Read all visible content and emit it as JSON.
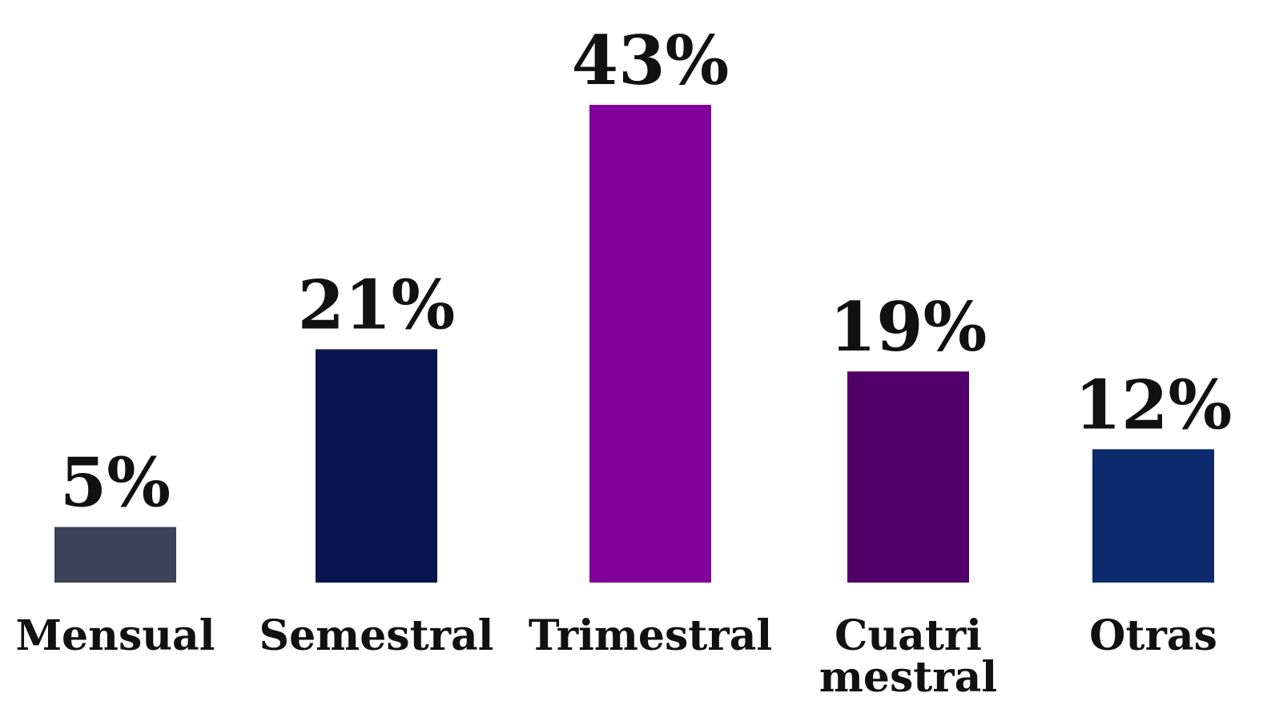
{
  "chart_data": {
    "type": "bar",
    "title": "",
    "xlabel": "",
    "ylabel": "",
    "unit": "%",
    "ylim": [
      0,
      43
    ],
    "grid": false,
    "legend": "none",
    "categories": [
      "Mensual",
      "Semestral",
      "Trimestral",
      "Cuatri mestral",
      "Otras"
    ],
    "category_lines": [
      [
        "Mensual"
      ],
      [
        "Semestral"
      ],
      [
        "Trimestral"
      ],
      [
        "Cuatri",
        "mestral"
      ],
      [
        "Otras"
      ]
    ],
    "values": [
      5,
      21,
      43,
      19,
      12
    ],
    "value_labels": [
      "5%",
      "21%",
      "43%",
      "19%",
      "12%"
    ],
    "colors": [
      "#3a4357",
      "#08154f",
      "#82009c",
      "#500066",
      "#0d2a6e"
    ]
  }
}
